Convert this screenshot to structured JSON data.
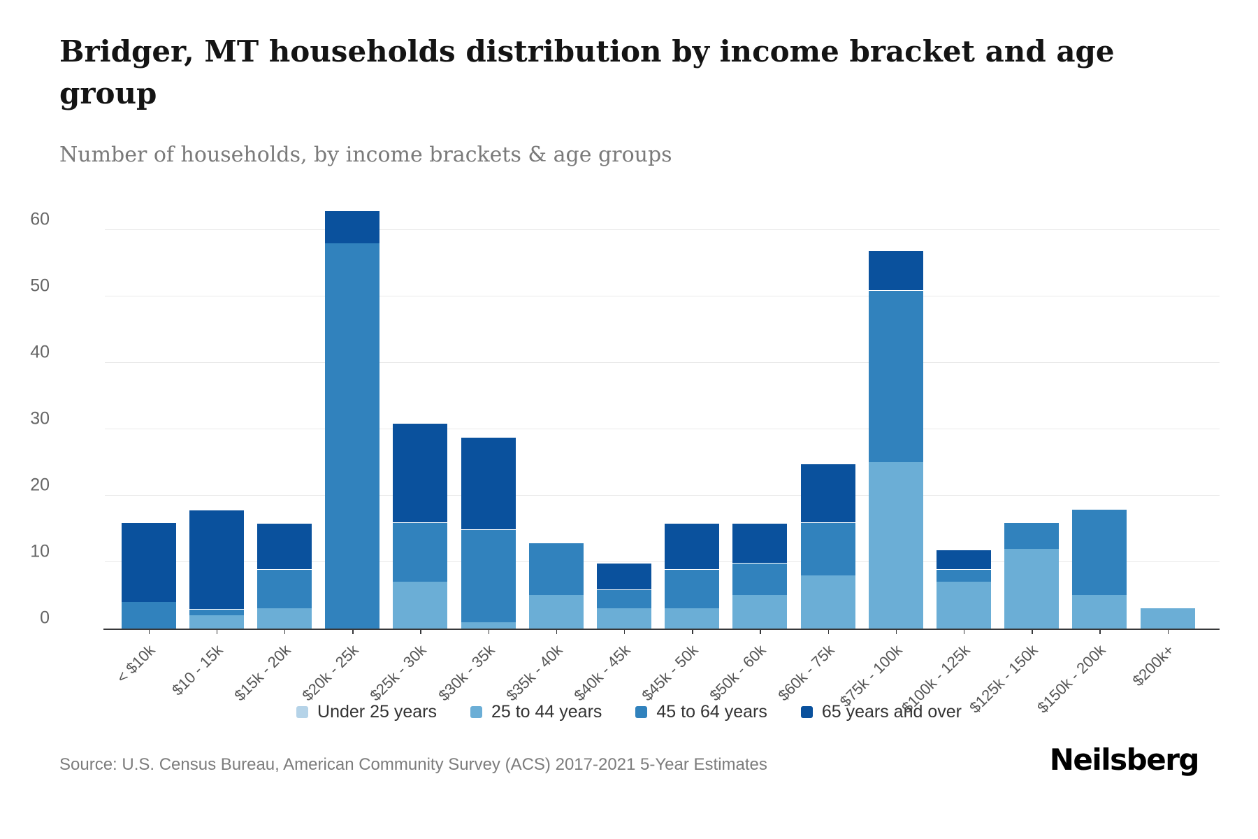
{
  "title": "Bridger, MT households distribution by income bracket and age group",
  "subtitle": "Number of households, by income brackets & age groups",
  "source": "Source: U.S. Census Bureau, American Community Survey (ACS) 2017-2021 5-Year Estimates",
  "logo_text": "Neilsberg",
  "chart_data": {
    "type": "bar",
    "stacked": true,
    "title": "Bridger, MT households distribution by income bracket and age group",
    "xlabel": "",
    "ylabel": "Number of households",
    "ylim": [
      0,
      63
    ],
    "yticks": [
      0,
      10,
      20,
      30,
      40,
      50,
      60
    ],
    "grid": true,
    "legend_position": "bottom",
    "categories": [
      "< $10k",
      "$10 - 15k",
      "$15k - 20k",
      "$20k - 25k",
      "$25k - 30k",
      "$30k - 35k",
      "$35k - 40k",
      "$40k - 45k",
      "$45k - 50k",
      "$50k - 60k",
      "$60k - 75k",
      "$75k - 100k",
      "$100k - 125k",
      "$125k - 150k",
      "$150k - 200k",
      "$200k+"
    ],
    "series": [
      {
        "name": "Under 25 years",
        "color": "#b5d3e8",
        "values": [
          0,
          0,
          0,
          0,
          0,
          0,
          0,
          0,
          0,
          0,
          0,
          0,
          0,
          0,
          0,
          0
        ]
      },
      {
        "name": "25 to 44 years",
        "color": "#6baed6",
        "values": [
          0,
          2,
          3,
          0,
          7,
          1,
          5,
          3,
          3,
          5,
          8,
          25,
          7,
          12,
          5,
          3
        ]
      },
      {
        "name": "45 to 64 years",
        "color": "#3182bd",
        "values": [
          4,
          1,
          6,
          58,
          9,
          14,
          8,
          3,
          6,
          5,
          8,
          26,
          2,
          4,
          13,
          0
        ]
      },
      {
        "name": "65 years and over",
        "color": "#0a519d",
        "values": [
          12,
          15,
          7,
          5,
          15,
          14,
          0,
          4,
          7,
          6,
          9,
          6,
          3,
          0,
          0,
          0
        ]
      }
    ],
    "totals": [
      16,
      18,
      16,
      63,
      31,
      29,
      13,
      10,
      16,
      16,
      25,
      57,
      12,
      16,
      18,
      3
    ]
  }
}
